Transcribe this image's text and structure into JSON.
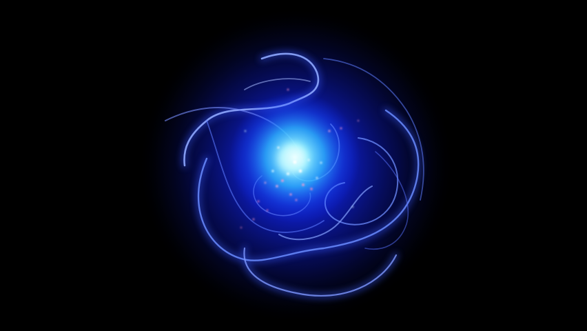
{
  "scene": {
    "subject": "glowing-blue-energy-orb",
    "colors": {
      "background": "#000000",
      "outer_glow": "#0a0a6e",
      "mid_glow": "#1a2bff",
      "core": "#58e6ff",
      "core_center": "#e8ffff",
      "strand": "#5a7cff",
      "strand_highlight": "#9fb8ff",
      "sparkle_warm": "#ff9ad0",
      "sparkle_cool": "#d8f6ff"
    }
  }
}
